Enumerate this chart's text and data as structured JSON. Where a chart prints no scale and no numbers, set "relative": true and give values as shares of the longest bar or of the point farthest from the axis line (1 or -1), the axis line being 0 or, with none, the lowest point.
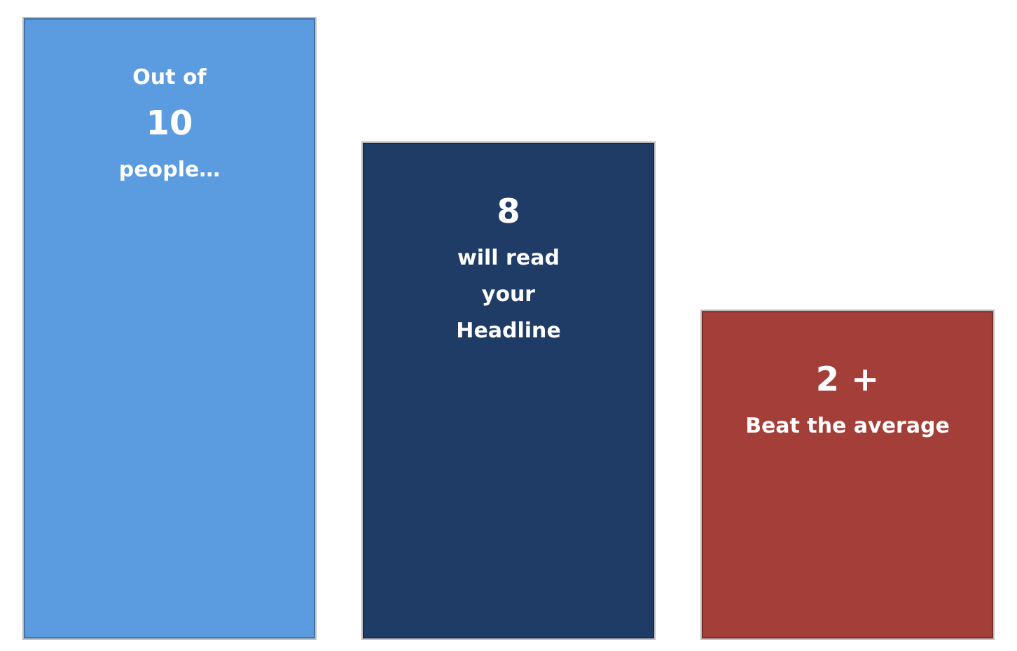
{
  "chart_data": {
    "type": "bar",
    "relative": true,
    "categories": [
      null,
      null,
      null
    ],
    "values": [
      1,
      0.8,
      0.53
    ],
    "colors": [
      "#5b9be0",
      "#1f3c66",
      "#a33e38"
    ],
    "annotations": [
      "Out of\n10\npeople…",
      "8\nwill read\nyour\nHeadline",
      "2 +\nBeat the average"
    ],
    "grid": false
  }
}
